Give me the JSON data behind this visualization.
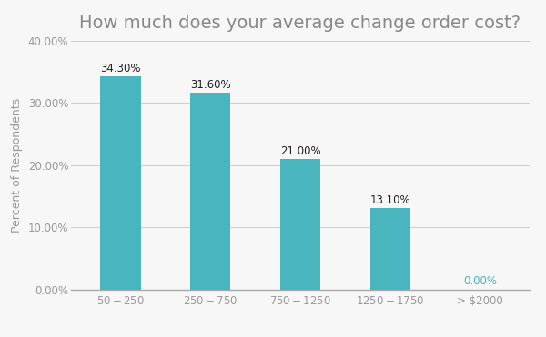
{
  "title": "How much does your average change order cost?",
  "categories": [
    "$50 - $250",
    "$250 - $750",
    "$750 - $1250",
    "$1250 - $1750",
    "> $2000"
  ],
  "values": [
    34.3,
    31.6,
    21.0,
    13.1,
    0.0
  ],
  "bar_color": "#49b5bf",
  "zero_label_color": "#49b5bf",
  "nonzero_label_color": "#222222",
  "ylabel": "Percent of Respondents",
  "ylim": [
    0,
    40
  ],
  "yticks": [
    0,
    10,
    20,
    30,
    40
  ],
  "background_color": "#f7f7f7",
  "grid_color": "#d0d0d0",
  "title_fontsize": 14,
  "label_fontsize": 8.5,
  "ylabel_fontsize": 9,
  "xtick_fontsize": 8.5,
  "ytick_fontsize": 8.5,
  "title_color": "#888888",
  "tick_color": "#999999",
  "axis_color": "#aaaaaa"
}
